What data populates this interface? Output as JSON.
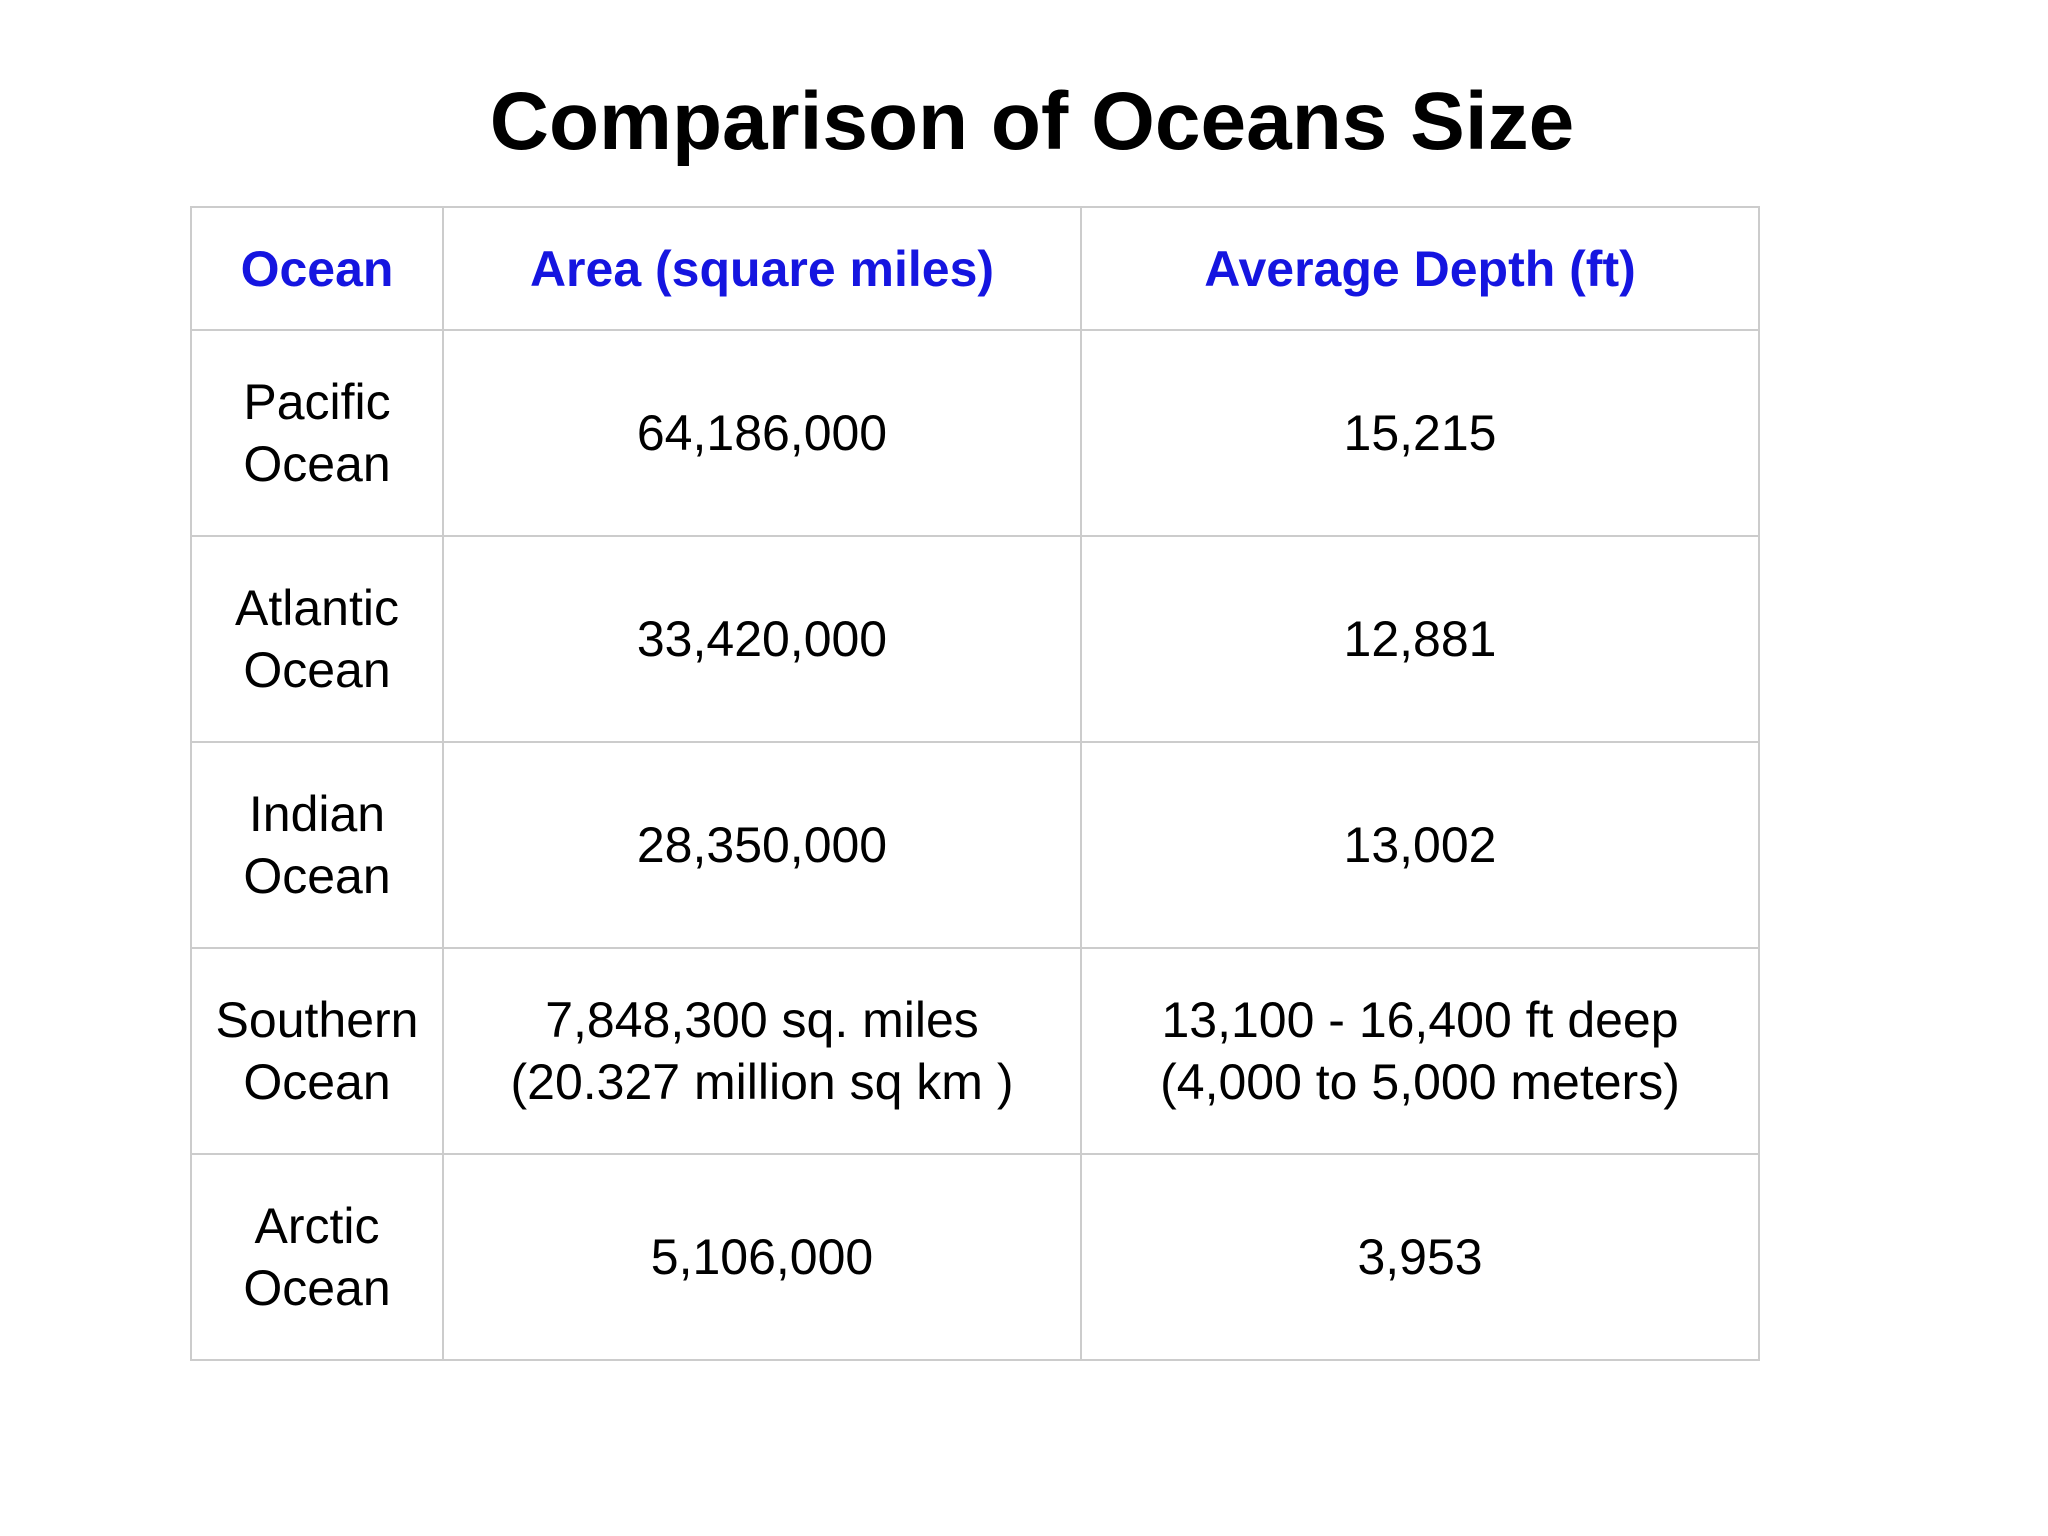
{
  "title": "Comparison of Oceans Size",
  "colors": {
    "header_text": "#1515e0",
    "border": "#cccccc",
    "body_text": "#000000"
  },
  "table": {
    "headers": [
      "Ocean",
      "Area (square miles)",
      "Average Depth (ft)"
    ],
    "rows": [
      {
        "ocean": [
          "Pacific",
          "Ocean"
        ],
        "area": [
          "64,186,000"
        ],
        "depth": [
          "15,215"
        ]
      },
      {
        "ocean": [
          "Atlantic",
          "Ocean"
        ],
        "area": [
          "33,420,000"
        ],
        "depth": [
          "12,881"
        ]
      },
      {
        "ocean": [
          "Indian",
          "Ocean"
        ],
        "area": [
          "28,350,000"
        ],
        "depth": [
          "13,002"
        ]
      },
      {
        "ocean": [
          "Southern",
          "Ocean"
        ],
        "area": [
          "7,848,300 sq. miles",
          "(20.327 million sq km )"
        ],
        "depth": [
          "13,100 - 16,400 ft deep",
          "(4,000 to 5,000 meters)"
        ]
      },
      {
        "ocean": [
          "Arctic",
          "Ocean"
        ],
        "area": [
          "5,106,000"
        ],
        "depth": [
          "3,953"
        ]
      }
    ]
  }
}
